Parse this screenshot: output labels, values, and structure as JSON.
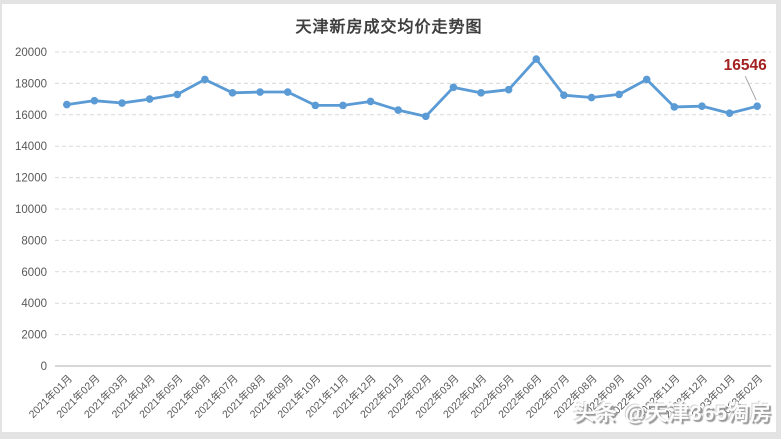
{
  "watermark": {
    "text": "头条 @天津365淘房"
  },
  "chart_data": {
    "type": "line",
    "title": "天津新房成交均价走势图",
    "categories": [
      "2021年01月",
      "2021年02月",
      "2021年03月",
      "2021年04月",
      "2021年05月",
      "2021年06月",
      "2021年07月",
      "2021年08月",
      "2021年09月",
      "2021年10月",
      "2021年11月",
      "2021年12月",
      "2022年01月",
      "2022年02月",
      "2022年03月",
      "2022年04月",
      "2022年05月",
      "2022年06月",
      "2022年07月",
      "2022年08月",
      "2022年09月",
      "2022年10月",
      "2022年11月",
      "2022年12月",
      "2023年01月",
      "2023年02月"
    ],
    "values": [
      16650,
      16900,
      16750,
      17000,
      17300,
      18250,
      17400,
      17450,
      17450,
      16600,
      16600,
      16850,
      16300,
      15900,
      17750,
      17400,
      17600,
      19550,
      17250,
      17100,
      17300,
      18250,
      16500,
      16550,
      16100,
      16546
    ],
    "ylim": [
      0,
      20000
    ],
    "ytick_step": 2000,
    "grid": "horizontal-dashed",
    "legend": "none",
    "xlabel": "",
    "ylabel": "",
    "annotation": {
      "text": "16546",
      "point_index": 25,
      "color": "#a32121"
    },
    "colors": {
      "line": "#5b9bd5",
      "marker": "#5b9bd5",
      "grid": "#d9d9d9",
      "axis": "#bfbfbf",
      "tick_label": "#595959",
      "title": "#3f3f3f",
      "leader_line": "#a6a6a6"
    }
  }
}
